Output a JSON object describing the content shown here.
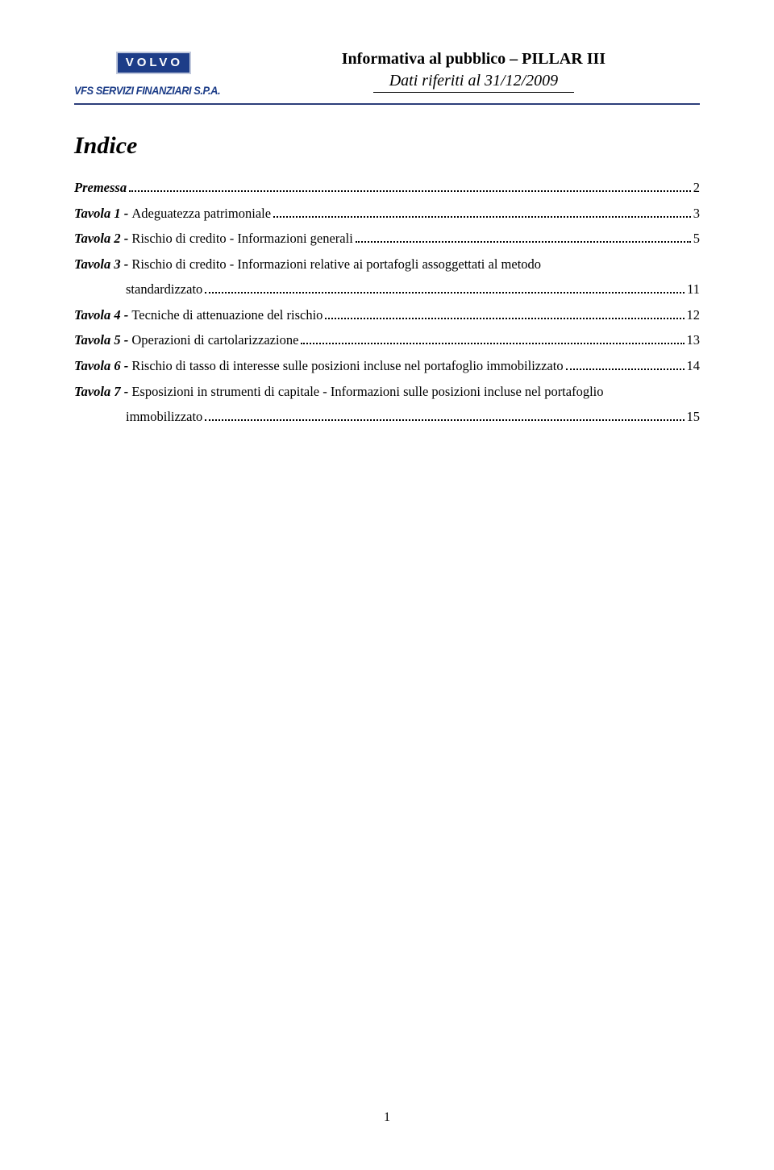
{
  "header": {
    "logo_text": "VOLVO",
    "company_text": "VFS SERVIZI FINANZIARI S.P.A.",
    "title_line1": "Informativa al pubblico – PILLAR III",
    "title_line2": "Dati riferiti al 31/12/2009"
  },
  "indice": {
    "title": "Indice",
    "entries": [
      {
        "bold": "Premessa",
        "rest": "",
        "page": "2",
        "indent": false
      },
      {
        "bold": "Tavola 1 - ",
        "rest": "Adeguatezza patrimoniale",
        "page": "3",
        "indent": false
      },
      {
        "bold": "Tavola 2 - ",
        "rest": "Rischio di credito - Informazioni generali",
        "page": "5",
        "indent": false
      },
      {
        "bold": "Tavola 3 - ",
        "rest": "Rischio di credito - Informazioni relative ai portafogli assoggettati al metodo",
        "page": "",
        "indent": false
      },
      {
        "bold": "",
        "rest": "standardizzato",
        "page": "11",
        "indent": true
      },
      {
        "bold": "Tavola 4 - ",
        "rest": "Tecniche di attenuazione del rischio",
        "page": "12",
        "indent": false
      },
      {
        "bold": "Tavola 5 - ",
        "rest": "Operazioni di cartolarizzazione",
        "page": "13",
        "indent": false
      },
      {
        "bold": "Tavola 6 - ",
        "rest": "Rischio di tasso di interesse sulle posizioni incluse nel portafoglio immobilizzato",
        "page": "14",
        "indent": false
      },
      {
        "bold": "Tavola 7 - ",
        "rest": "Esposizioni in strumenti di capitale - Informazioni sulle posizioni incluse nel portafoglio",
        "page": "",
        "indent": false
      },
      {
        "bold": "",
        "rest": "immobilizzato",
        "page": "15",
        "indent": true
      }
    ]
  },
  "footer": {
    "page_number": "1"
  }
}
